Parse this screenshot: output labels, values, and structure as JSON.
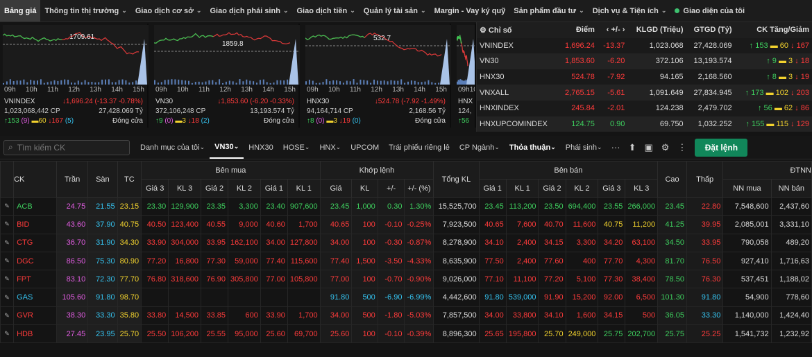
{
  "nav": {
    "items": [
      {
        "label": "Bảng giá",
        "active": true,
        "chev": false
      },
      {
        "label": "Thông tin thị trường",
        "chev": true
      },
      {
        "label": "Giao dịch cơ sở",
        "chev": true
      },
      {
        "label": "Giao dịch phái sinh",
        "chev": true
      },
      {
        "label": "Giao dịch tiền",
        "chev": true
      },
      {
        "label": "Quản lý tài sản",
        "chev": true
      },
      {
        "label": "Margin - Vay ký quỹ",
        "chev": false
      },
      {
        "label": "Sản phẩm đầu tư",
        "chev": true
      },
      {
        "label": "Dịch vụ & Tiện ích",
        "chev": true
      },
      {
        "label": "Giao diện của tôi",
        "chev": false,
        "dot": true
      }
    ]
  },
  "minicharts": [
    {
      "times": [
        "09h",
        "10h",
        "11h",
        "12h",
        "13h",
        "14h",
        "15h"
      ],
      "ref": "1709.61",
      "name": "VNINDEX",
      "change": "↓1,696.24 (-13.37 -0.78%)",
      "vol": "1,023,068,442 CP",
      "val": "27,428.069 Tỷ",
      "up": "↑153",
      "up_c": "(9)",
      "ref_c": "▬60",
      "dn": "↓167",
      "dn_c": "(5)",
      "status": "Đóng cửa"
    },
    {
      "times": [
        "09h",
        "10h",
        "11h",
        "12h",
        "13h",
        "14h",
        "15h"
      ],
      "ref": "1859.8",
      "name": "VN30",
      "change": "↓1,853.60 (-6.20 -0.33%)",
      "vol": "372,106,248 CP",
      "val": "13,193.574 Tỷ",
      "up": "↑9",
      "up_c": "(0)",
      "ref_c": "▬3",
      "dn": "↓18",
      "dn_c": "(2)",
      "status": "Đóng cửa"
    },
    {
      "times": [
        "09h",
        "10h",
        "11h",
        "12h",
        "13h",
        "14h",
        "15h"
      ],
      "ref": "532.7",
      "name": "HNX30",
      "change": "↓524.78 (-7.92 -1.49%)",
      "vol": "94,164,714 CP",
      "val": "2,168.56 Tỷ",
      "up": "↑8",
      "up_c": "(0)",
      "ref_c": "▬3",
      "dn": "↓19",
      "dn_c": "(0)",
      "status": "Đóng cửa"
    },
    {
      "times": [
        "09h",
        "10h"
      ],
      "name": "HNX",
      "vol": "124,",
      "up": "↑56"
    }
  ],
  "indices": {
    "headers": [
      "Chỉ số",
      "Điểm",
      "+/-",
      "KLGD (Triệu)",
      "GTGD (Tỷ)",
      "CK Tăng/Giảm"
    ],
    "rows": [
      {
        "name": "VNINDEX",
        "point": "1,696.24",
        "chg": "-13.37",
        "kl": "1,023.068",
        "gt": "27,428.069",
        "up": "↑ 153",
        "ref": "▬ 60",
        "dn": "↓ 167",
        "pc": "dn"
      },
      {
        "name": "VN30",
        "point": "1,853.60",
        "chg": "-6.20",
        "kl": "372.106",
        "gt": "13,193.574",
        "up": "↑ 9",
        "ref": "▬ 3",
        "dn": "↓ 18",
        "pc": "dn"
      },
      {
        "name": "HNX30",
        "point": "524.78",
        "chg": "-7.92",
        "kl": "94.165",
        "gt": "2,168.560",
        "up": "↑ 8",
        "ref": "▬ 3",
        "dn": "↓ 19",
        "pc": "dn"
      },
      {
        "name": "VNXALL",
        "point": "2,765.15",
        "chg": "-5.61",
        "kl": "1,091.649",
        "gt": "27,834.945",
        "up": "↑ 173",
        "ref": "▬ 102",
        "dn": "↓ 203",
        "pc": "dn"
      },
      {
        "name": "HNXINDEX",
        "point": "245.84",
        "chg": "-2.01",
        "kl": "124.238",
        "gt": "2,479.702",
        "up": "↑ 56",
        "ref": "▬ 62",
        "dn": "↓ 86",
        "pc": "dn"
      },
      {
        "name": "HNXUPCOMINDEX",
        "point": "124.75",
        "chg": "0.90",
        "kl": "69.750",
        "gt": "1,032.252",
        "up": "↑ 155",
        "ref": "▬ 115",
        "dn": "↓ 129",
        "pc": "up"
      }
    ]
  },
  "toolbar": {
    "search_placeholder": "Tìm kiếm CK",
    "tabs": [
      {
        "label": "Danh mục của tôi",
        "chev": true
      },
      {
        "label": "VN30",
        "chev": true,
        "active": true
      },
      {
        "label": "HNX30"
      },
      {
        "label": "HOSE",
        "chev": true
      },
      {
        "label": "HNX",
        "chev": true
      },
      {
        "label": "UPCOM"
      },
      {
        "label": "Trái phiếu riêng lẻ"
      },
      {
        "label": "CP Ngành",
        "chev": true
      },
      {
        "label": "Thỏa thuận",
        "chev": true,
        "bold": true
      },
      {
        "label": "Phái sinh",
        "chev": true
      }
    ],
    "order_label": "Đặt lệnh"
  },
  "board": {
    "groups": {
      "buy": "Bên mua",
      "match": "Khớp lệnh",
      "sell": "Bên bán",
      "foreign": "ĐTNN"
    },
    "cols": {
      "ck": "CK",
      "tran": "Trần",
      "san": "Sàn",
      "tc": "TC",
      "g3": "Giá 3",
      "k3": "KL 3",
      "g2": "Giá 2",
      "k2": "KL 2",
      "g1": "Giá 1",
      "k1": "KL 1",
      "mg": "Giá",
      "mk": "KL",
      "pm": "+/-",
      "pct": "+/- (%)",
      "tkl": "Tổng KL",
      "cao": "Cao",
      "thap": "Thấp",
      "nnm": "NN mua",
      "nnb": "NN bán"
    },
    "rows": [
      {
        "ck": "ACB",
        "c": "up",
        "tran": "24.75",
        "san": "21.55",
        "tc": "23.15",
        "b3": [
          "23.30",
          "129,900",
          "up"
        ],
        "b2": [
          "23.35",
          "3,300",
          "up"
        ],
        "b1": [
          "23.40",
          "907,600",
          "up"
        ],
        "m": [
          "23.45",
          "1,000",
          "0.30",
          "1.30%",
          "up"
        ],
        "tkl": "15,525,700",
        "s1": [
          "23.45",
          "113,200",
          "up"
        ],
        "s2": [
          "23.50",
          "694,400",
          "up"
        ],
        "s3": [
          "23.55",
          "266,000",
          "up"
        ],
        "cao": [
          "23.45",
          "up"
        ],
        "thap": [
          "22.80",
          "dn"
        ],
        "nnm": "7,548,600",
        "nnb": "2,437,60"
      },
      {
        "ck": "BID",
        "c": "dn",
        "tran": "43.60",
        "san": "37.90",
        "tc": "40.75",
        "b3": [
          "40.50",
          "123,400",
          "dn"
        ],
        "b2": [
          "40.55",
          "9,000",
          "dn"
        ],
        "b1": [
          "40.60",
          "1,700",
          "dn"
        ],
        "m": [
          "40.65",
          "100",
          "-0.10",
          "-0.25%",
          "dn"
        ],
        "tkl": "7,923,500",
        "s1": [
          "40.65",
          "7,600",
          "dn"
        ],
        "s2": [
          "40.70",
          "11,600",
          "dn"
        ],
        "s3": [
          "40.75",
          "11,200",
          "ref"
        ],
        "cao": [
          "41.25",
          "up"
        ],
        "thap": [
          "39.95",
          "dn"
        ],
        "nnm": "2,085,001",
        "nnb": "3,331,10"
      },
      {
        "ck": "CTG",
        "c": "dn",
        "tran": "36.70",
        "san": "31.90",
        "tc": "34.30",
        "b3": [
          "33.90",
          "304,000",
          "dn"
        ],
        "b2": [
          "33.95",
          "162,100",
          "dn"
        ],
        "b1": [
          "34.00",
          "127,800",
          "dn"
        ],
        "m": [
          "34.00",
          "100",
          "-0.30",
          "-0.87%",
          "dn"
        ],
        "tkl": "8,278,900",
        "s1": [
          "34.10",
          "2,400",
          "dn"
        ],
        "s2": [
          "34.15",
          "3,300",
          "dn"
        ],
        "s3": [
          "34.20",
          "63,100",
          "dn"
        ],
        "cao": [
          "34.50",
          "up"
        ],
        "thap": [
          "33.95",
          "dn"
        ],
        "nnm": "790,058",
        "nnb": "489,20"
      },
      {
        "ck": "DGC",
        "c": "dn",
        "tran": "86.50",
        "san": "75.30",
        "tc": "80.90",
        "b3": [
          "77.20",
          "16,800",
          "dn"
        ],
        "b2": [
          "77.30",
          "59,000",
          "dn"
        ],
        "b1": [
          "77.40",
          "115,600",
          "dn"
        ],
        "m": [
          "77.40",
          "1,500",
          "-3.50",
          "-4.33%",
          "dn"
        ],
        "tkl": "8,635,900",
        "s1": [
          "77.50",
          "2,400",
          "dn"
        ],
        "s2": [
          "77.60",
          "400",
          "dn"
        ],
        "s3": [
          "77.70",
          "4,300",
          "dn"
        ],
        "cao": [
          "81.70",
          "up"
        ],
        "thap": [
          "76.50",
          "dn"
        ],
        "nnm": "927,410",
        "nnb": "1,716,63"
      },
      {
        "ck": "FPT",
        "c": "dn",
        "tran": "83.10",
        "san": "72.30",
        "tc": "77.70",
        "b3": [
          "76.80",
          "318,600",
          "dn"
        ],
        "b2": [
          "76.90",
          "305,800",
          "dn"
        ],
        "b1": [
          "77.00",
          "105,800",
          "dn"
        ],
        "m": [
          "77.00",
          "100",
          "-0.70",
          "-0.90%",
          "dn"
        ],
        "tkl": "9,026,000",
        "s1": [
          "77.10",
          "11,100",
          "dn"
        ],
        "s2": [
          "77.20",
          "5,100",
          "dn"
        ],
        "s3": [
          "77.30",
          "38,400",
          "dn"
        ],
        "cao": [
          "78.50",
          "up"
        ],
        "thap": [
          "76.30",
          "dn"
        ],
        "nnm": "537,451",
        "nnb": "1,188,02"
      },
      {
        "ck": "GAS",
        "c": "fl",
        "tran": "105.60",
        "san": "91.80",
        "tc": "98.70",
        "b3": [
          "",
          "",
          ""
        ],
        "b2": [
          "",
          "",
          ""
        ],
        "b1": [
          "",
          "",
          ""
        ],
        "m": [
          "91.80",
          "500",
          "-6.90",
          "-6.99%",
          "fl"
        ],
        "tkl": "4,442,600",
        "s1": [
          "91.80",
          "539,000",
          "fl"
        ],
        "s2": [
          "91.90",
          "15,200",
          "dn"
        ],
        "s3": [
          "92.00",
          "6,500",
          "dn"
        ],
        "cao": [
          "101.30",
          "up"
        ],
        "thap": [
          "91.80",
          "fl"
        ],
        "nnm": "54,900",
        "nnb": "778,60"
      },
      {
        "ck": "GVR",
        "c": "dn",
        "tran": "38.30",
        "san": "33.30",
        "tc": "35.80",
        "b3": [
          "33.80",
          "14,500",
          "dn"
        ],
        "b2": [
          "33.85",
          "600",
          "dn"
        ],
        "b1": [
          "33.90",
          "1,700",
          "dn"
        ],
        "m": [
          "34.00",
          "500",
          "-1.80",
          "-5.03%",
          "dn"
        ],
        "tkl": "7,857,500",
        "s1": [
          "34.00",
          "33,800",
          "dn"
        ],
        "s2": [
          "34.10",
          "1,600",
          "dn"
        ],
        "s3": [
          "34.15",
          "500",
          "dn"
        ],
        "cao": [
          "36.05",
          "up"
        ],
        "thap": [
          "33.30",
          "fl"
        ],
        "nnm": "1,140,000",
        "nnb": "1,424,40"
      },
      {
        "ck": "HDB",
        "c": "dn",
        "tran": "27.45",
        "san": "23.95",
        "tc": "25.70",
        "b3": [
          "25.50",
          "106,200",
          "dn"
        ],
        "b2": [
          "25.55",
          "95,000",
          "dn"
        ],
        "b1": [
          "25.60",
          "69,700",
          "dn"
        ],
        "m": [
          "25.60",
          "100",
          "-0.10",
          "-0.39%",
          "dn"
        ],
        "tkl": "8,896,300",
        "s1": [
          "25.65",
          "195,800",
          "dn"
        ],
        "s2": [
          "25.70",
          "249,000",
          "ref"
        ],
        "s3": [
          "25.75",
          "202,700",
          "up"
        ],
        "cao": [
          "25.75",
          "up"
        ],
        "thap": [
          "25.25",
          "dn"
        ],
        "nnm": "1,541,732",
        "nnb": "1,232,92"
      }
    ]
  }
}
